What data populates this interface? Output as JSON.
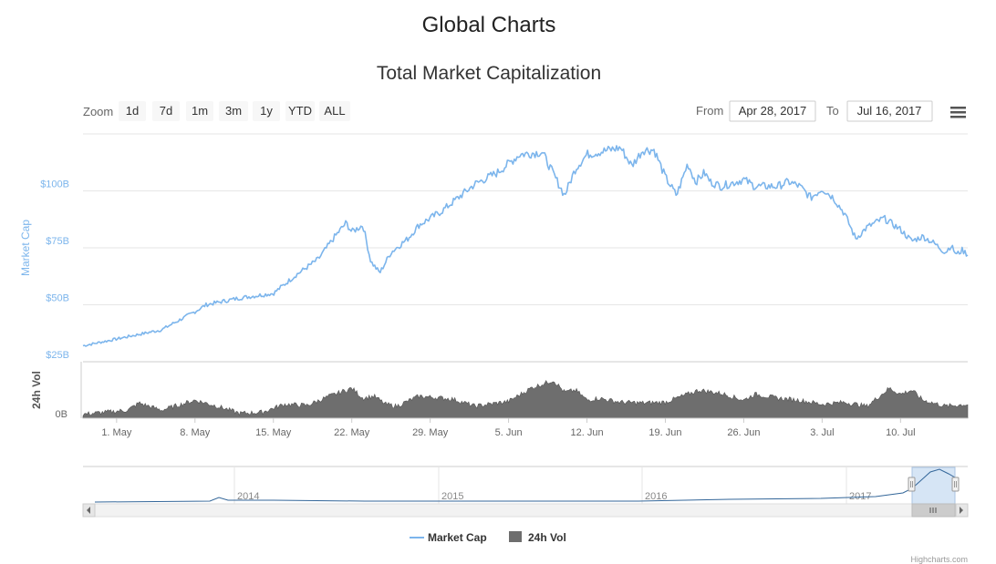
{
  "page_title": "Global Charts",
  "range_selector": {
    "zoom_label": "Zoom",
    "buttons": [
      "1d",
      "7d",
      "1m",
      "3m",
      "1y",
      "YTD",
      "ALL"
    ],
    "from_label": "From",
    "from_value": "Apr 28, 2017",
    "to_label": "To",
    "to_value": "Jul 16, 2017"
  },
  "menu_icon": "hamburger-menu-icon",
  "credits": "Highcharts.com",
  "colors": {
    "market_cap": "#7cb5ec",
    "volume": "#6e6e6e",
    "grid": "#e6e6e6",
    "navigator_mask": "#cfe0f3",
    "scrollbar": "#f2f2f2"
  },
  "chart_data": {
    "type": "line",
    "title": "Total Market Capitalization",
    "xlabel": "",
    "x_ticks": [
      "1. May",
      "8. May",
      "15. May",
      "22. May",
      "29. May",
      "5. Jun",
      "12. Jun",
      "19. Jun",
      "26. Jun",
      "3. Jul",
      "10. Jul"
    ],
    "x_range": [
      "Apr 28, 2017",
      "Jul 16, 2017"
    ],
    "panes": [
      {
        "name": "Market Cap",
        "ylabel": "Market Cap",
        "y_ticks": [
          "$25B",
          "$50B",
          "$75B",
          "$100B"
        ],
        "ylim_billions": [
          25,
          125
        ]
      },
      {
        "name": "24h Vol",
        "ylabel": "24h Vol",
        "y_ticks": [
          "0B"
        ]
      }
    ],
    "series": [
      {
        "name": "Market Cap",
        "type": "line",
        "unit": "$B",
        "day_offsets": [
          0,
          3,
          7,
          10,
          11,
          14,
          17,
          19,
          21,
          22.5,
          23.5,
          24,
          25,
          25.7,
          26.5,
          27.5,
          29,
          30,
          32,
          35,
          37,
          39,
          41,
          43,
          44,
          45,
          46,
          47,
          48,
          49,
          50,
          51,
          52,
          53,
          54,
          54.7,
          55.5,
          56,
          57,
          59,
          60,
          62,
          63,
          64,
          65,
          66,
          67,
          68,
          69,
          70,
          71.5,
          73,
          74,
          75,
          76,
          77,
          77.5,
          78,
          78.5,
          79
        ],
        "values": [
          32,
          35,
          39,
          47,
          50,
          53,
          55,
          63,
          70,
          80,
          86,
          82,
          85,
          69,
          64,
          73,
          79,
          85,
          91,
          103,
          108,
          116,
          117,
          98,
          110,
          116,
          117,
          118,
          119,
          111,
          118,
          118,
          106,
          98,
          112,
          104,
          108,
          104,
          102,
          105,
          102,
          102,
          104,
          102,
          97,
          101,
          97,
          90,
          79,
          84,
          88,
          83,
          78,
          80,
          77,
          73,
          76,
          72,
          74,
          72
        ]
      },
      {
        "name": "24h Vol",
        "type": "area",
        "unit": "relative",
        "day_offsets": [
          0,
          4,
          5,
          7,
          10,
          12,
          14,
          16,
          18,
          20,
          22,
          24,
          25,
          26,
          27,
          28,
          30,
          33,
          35,
          38,
          40,
          42,
          43,
          44,
          45,
          46,
          48,
          50,
          52,
          55,
          57,
          59,
          60,
          62,
          64,
          66,
          68,
          70,
          72,
          73,
          74,
          75,
          77,
          79
        ],
        "values": [
          0.1,
          0.2,
          0.38,
          0.2,
          0.45,
          0.3,
          0.12,
          0.15,
          0.35,
          0.32,
          0.55,
          0.75,
          0.5,
          0.55,
          0.35,
          0.3,
          0.55,
          0.48,
          0.3,
          0.42,
          0.75,
          0.95,
          0.65,
          0.7,
          0.45,
          0.5,
          0.4,
          0.38,
          0.4,
          0.7,
          0.62,
          0.45,
          0.6,
          0.5,
          0.45,
          0.35,
          0.4,
          0.3,
          0.75,
          0.6,
          0.7,
          0.45,
          0.3,
          0.35
        ]
      }
    ],
    "navigator": {
      "year_labels": [
        "2014",
        "2015",
        "2016",
        "2017"
      ],
      "selected_range": [
        "Apr 28, 2017",
        "Jul 16, 2017"
      ]
    },
    "legend": {
      "position": "bottom-center",
      "items": [
        "Market Cap",
        "24h Vol"
      ]
    }
  }
}
